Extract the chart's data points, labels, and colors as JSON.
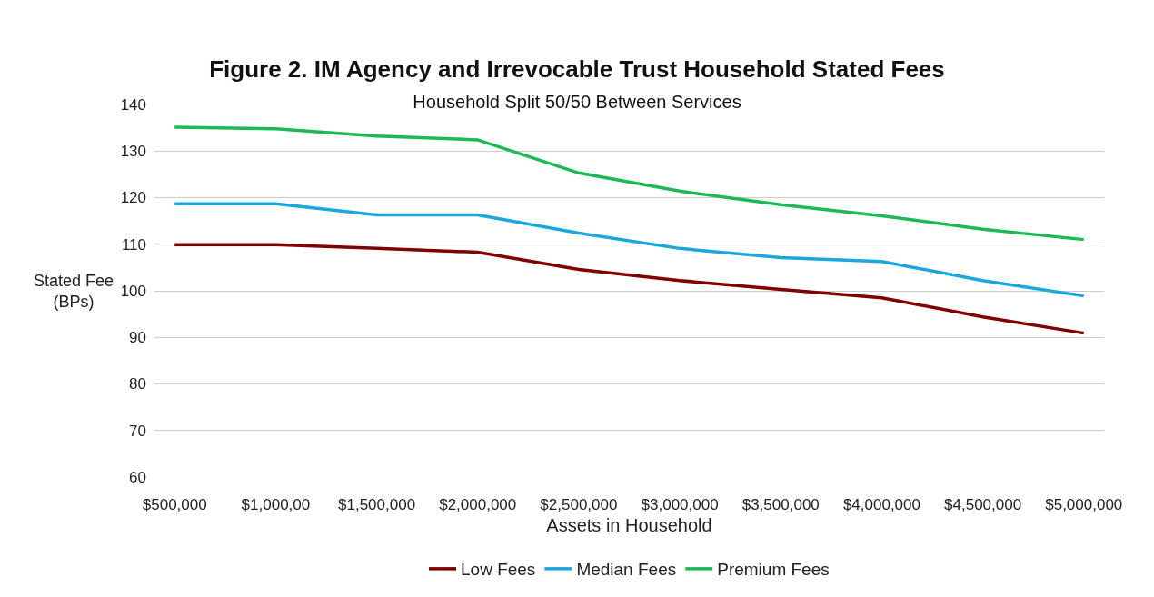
{
  "chart_data": {
    "type": "line",
    "title": "Figure 2. IM Agency and Irrevocable Trust Household Stated Fees",
    "subtitle": "Household Split 50/50 Between Services",
    "xlabel": "Assets in Household",
    "ylabel": "Stated Fee (BPs)",
    "categories": [
      "$500,000",
      "$1,000,00",
      "$1,500,000",
      "$2,000,000",
      "$2,500,000",
      "$3,000,000",
      "$3,500,000",
      "$4,000,000",
      "$4,500,000",
      "$5,000,000"
    ],
    "series": [
      {
        "name": "Low Fees",
        "color": "#800000",
        "values": [
          109.9,
          109.9,
          109.1,
          108.3,
          104.6,
          102.2,
          100.3,
          98.5,
          94.4,
          90.9
        ]
      },
      {
        "name": "Median Fees",
        "color": "#1aa7dc",
        "values": [
          118.7,
          118.7,
          116.3,
          116.3,
          112.4,
          109.1,
          107.1,
          106.3,
          102.2,
          98.9
        ]
      },
      {
        "name": "Premium Fees",
        "color": "#1db954",
        "values": [
          135.1,
          134.8,
          133.2,
          132.4,
          125.3,
          121.4,
          118.5,
          116.1,
          113.2,
          111.0
        ]
      }
    ],
    "ylim": [
      60,
      140
    ],
    "yticks": [
      60,
      70,
      80,
      90,
      100,
      110,
      120,
      130,
      140
    ],
    "grid": "y",
    "legend": "bottom",
    "marker": "none",
    "line_style": "solid"
  }
}
